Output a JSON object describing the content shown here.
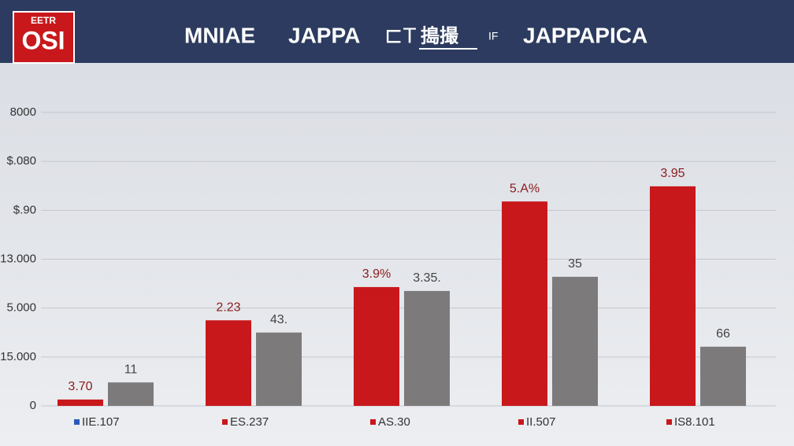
{
  "chart_data": {
    "type": "bar",
    "title_parts": [
      "MNIAE",
      "JAPPA",
      "⊏T",
      "搗撮",
      "IF",
      "JAPPAPICA"
    ],
    "logo": [
      "EETR",
      "OSI"
    ],
    "categories": [
      "IIE.107",
      "ES.237",
      "AS.30",
      "II.507",
      "IS8.101"
    ],
    "category_marker_colors": [
      "#2a5ab8",
      "#c8181c",
      "#c8181c",
      "#c8181c",
      "#c8181c"
    ],
    "series": [
      {
        "color": "#c8181c",
        "values": [
          0.13,
          1.75,
          2.43,
          4.18,
          4.49
        ]
      },
      {
        "color": "#7d7a7b",
        "values": [
          0.48,
          1.5,
          2.35,
          2.64,
          1.21
        ]
      }
    ],
    "annotations": [
      [
        "3.70",
        "2.23",
        "3.9%",
        "5.A%",
        "3.95"
      ],
      [
        "11",
        "43.",
        "3.35.",
        "35",
        "66"
      ]
    ],
    "annotation_colors": [
      "#8a1b1b",
      "#444444"
    ],
    "ylim": [
      0,
      6
    ],
    "yticks": [
      {
        "value": 0,
        "label": "0"
      },
      {
        "value": 1,
        "label": "15.000"
      },
      {
        "value": 2,
        "label": "5.000"
      },
      {
        "value": 3,
        "label": "13.000"
      },
      {
        "value": 4,
        "label": "$.90"
      },
      {
        "value": 5,
        "label": "$.080"
      },
      {
        "value": 6,
        "label": "8000"
      }
    ],
    "grid": true
  }
}
